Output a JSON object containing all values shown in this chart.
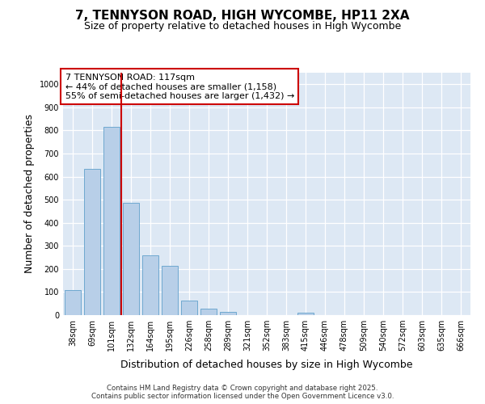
{
  "title_line1": "7, TENNYSON ROAD, HIGH WYCOMBE, HP11 2XA",
  "title_line2": "Size of property relative to detached houses in High Wycombe",
  "xlabel": "Distribution of detached houses by size in High Wycombe",
  "ylabel": "Number of detached properties",
  "categories": [
    "38sqm",
    "69sqm",
    "101sqm",
    "132sqm",
    "164sqm",
    "195sqm",
    "226sqm",
    "258sqm",
    "289sqm",
    "321sqm",
    "352sqm",
    "383sqm",
    "415sqm",
    "446sqm",
    "478sqm",
    "509sqm",
    "540sqm",
    "572sqm",
    "603sqm",
    "635sqm",
    "666sqm"
  ],
  "values": [
    110,
    635,
    815,
    485,
    258,
    212,
    63,
    27,
    15,
    0,
    0,
    0,
    10,
    0,
    0,
    0,
    0,
    0,
    0,
    0,
    0
  ],
  "bar_color": "#b8cfe8",
  "bar_edge_color": "#6fa8d0",
  "vline_x": 2.5,
  "vline_color": "#cc0000",
  "annotation_text": "7 TENNYSON ROAD: 117sqm\n← 44% of detached houses are smaller (1,158)\n55% of semi-detached houses are larger (1,432) →",
  "box_edge_color": "#cc0000",
  "ylim": [
    0,
    1050
  ],
  "yticks": [
    0,
    100,
    200,
    300,
    400,
    500,
    600,
    700,
    800,
    900,
    1000
  ],
  "background_color": "#dde8f4",
  "grid_color": "#ffffff",
  "footer_text": "Contains HM Land Registry data © Crown copyright and database right 2025.\nContains public sector information licensed under the Open Government Licence v3.0.",
  "title_fontsize": 11,
  "subtitle_fontsize": 9,
  "tick_fontsize": 7,
  "label_fontsize": 9,
  "annot_fontsize": 8
}
